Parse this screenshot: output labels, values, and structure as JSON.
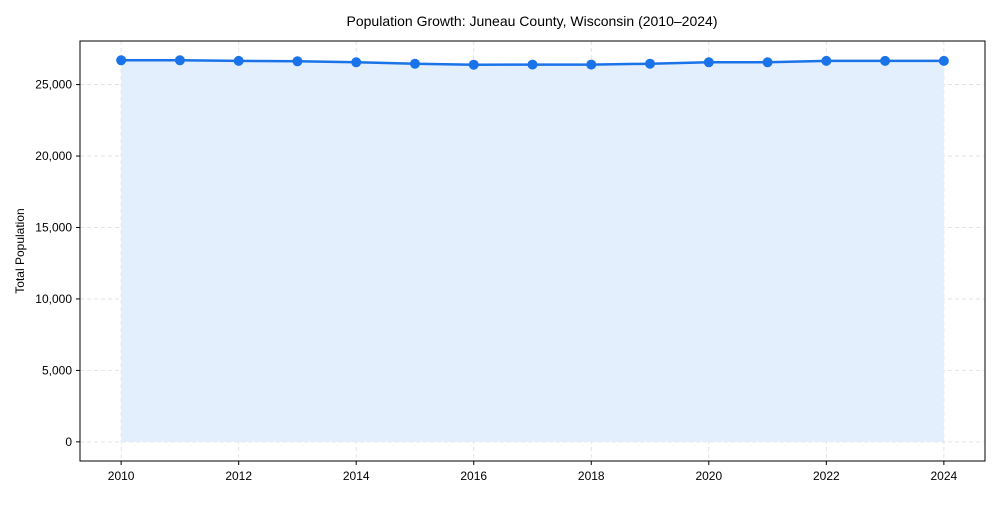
{
  "chart_data": {
    "type": "line",
    "title": "Population Growth: Juneau County, Wisconsin (2010–2024)",
    "xlabel": "",
    "ylabel": "Total Population",
    "x": [
      2010,
      2011,
      2012,
      2013,
      2014,
      2015,
      2016,
      2017,
      2018,
      2019,
      2020,
      2021,
      2022,
      2023,
      2024
    ],
    "series": [
      {
        "name": "Total Population",
        "values": [
          26700,
          26700,
          26660,
          26630,
          26560,
          26460,
          26390,
          26400,
          26400,
          26460,
          26560,
          26560,
          26660,
          26660,
          26660
        ],
        "color": "#1a73e8",
        "fill_color": "#e3eefd",
        "marker": "circle"
      }
    ],
    "xlim": [
      2009.3,
      2024.7
    ],
    "ylim": [
      -1340,
      28050
    ],
    "x_ticks": [
      2010,
      2012,
      2014,
      2016,
      2018,
      2020,
      2022,
      2024
    ],
    "x_tick_labels": [
      "2010",
      "2012",
      "2014",
      "2016",
      "2018",
      "2020",
      "2022",
      "2024"
    ],
    "y_ticks": [
      0,
      5000,
      10000,
      15000,
      20000,
      25000
    ],
    "y_tick_labels": [
      "0",
      "5,000",
      "10,000",
      "15,000",
      "20,000",
      "25,000"
    ],
    "grid": true,
    "grid_style": "dashed",
    "legend": null,
    "area_fill": true
  }
}
